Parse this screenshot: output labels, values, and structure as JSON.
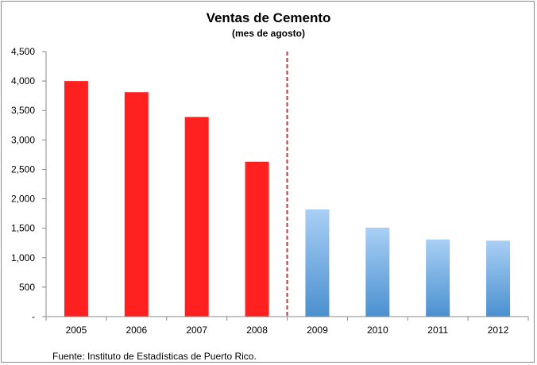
{
  "chart_data": {
    "type": "bar",
    "title": "Ventas de Cemento",
    "subtitle": "(mes de agosto)",
    "categories": [
      "2005",
      "2006",
      "2007",
      "2008",
      "2009",
      "2010",
      "2011",
      "2012"
    ],
    "values": [
      4000,
      3810,
      3390,
      2630,
      1820,
      1510,
      1310,
      1290
    ],
    "xlabel": "",
    "ylabel": "",
    "ylim": [
      0,
      4500
    ],
    "yticks": [
      0,
      500,
      1000,
      1500,
      2000,
      2500,
      3000,
      3500,
      4000,
      4500
    ],
    "ytick_labels": [
      "-",
      "500",
      "1,000",
      "1,500",
      "2,000",
      "2,500",
      "3,000",
      "3,500",
      "4,000",
      "4,500"
    ],
    "grid": false,
    "legend": "none",
    "divider_after_category": "2008",
    "bar_colors": [
      "#ff2020",
      "#ff2020",
      "#ff2020",
      "#ff2020",
      "#a9cff5",
      "#a9cff5",
      "#a9cff5",
      "#a9cff5"
    ],
    "gradient_bottom_color": "#4a90d0",
    "divider_color": "#cc3333",
    "source": "Fuente: Instituto de Estadísticas de Puerto Rico."
  }
}
